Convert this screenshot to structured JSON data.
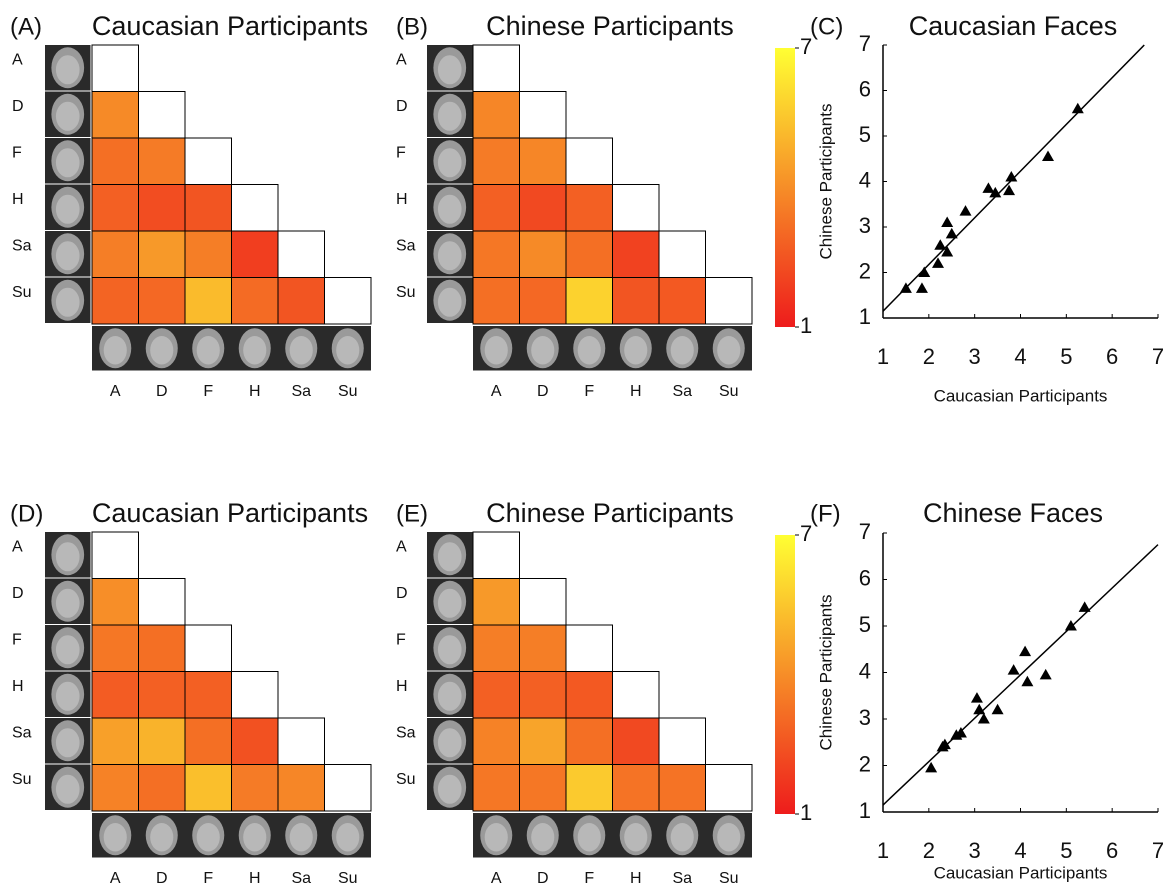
{
  "chart_data": [
    {
      "type": "heatmap",
      "panel": "(A)",
      "title": "Caucasian Participants",
      "row_labels": [
        "A",
        "D",
        "F",
        "H",
        "Sa",
        "Su"
      ],
      "col_labels": [
        "A",
        "D",
        "F",
        "H",
        "Sa",
        "Su"
      ],
      "values": [
        [],
        [
          3.9
        ],
        [
          3.2,
          3.5
        ],
        [
          2.8,
          2.3,
          2.5
        ],
        [
          3.6,
          4.3,
          3.6,
          1.9
        ],
        [
          2.9,
          3.0,
          5.2,
          3.1,
          2.5
        ]
      ],
      "clim": [
        1,
        7
      ],
      "colormap": [
        "#ee1c1c",
        "#ffff33"
      ]
    },
    {
      "type": "heatmap",
      "panel": "(B)",
      "title": "Chinese Participants",
      "row_labels": [
        "A",
        "D",
        "F",
        "H",
        "Sa",
        "Su"
      ],
      "col_labels": [
        "A",
        "D",
        "F",
        "H",
        "Sa",
        "Su"
      ],
      "values": [
        [],
        [
          3.8
        ],
        [
          3.5,
          3.8
        ],
        [
          2.8,
          2.2,
          2.8
        ],
        [
          3.4,
          3.9,
          3.2,
          2.0
        ],
        [
          3.2,
          3.0,
          5.8,
          2.5,
          2.6
        ]
      ],
      "clim": [
        1,
        7
      ],
      "colormap": [
        "#ee1c1c",
        "#ffff33"
      ],
      "colorbar_ticks": [
        1,
        7
      ]
    },
    {
      "type": "scatter",
      "panel": "(C)",
      "title": "Caucasian Faces",
      "x_label": "Caucasian Participants",
      "y_label": "Chinese Participants",
      "x": [
        1.5,
        1.85,
        1.9,
        2.2,
        2.25,
        2.4,
        2.4,
        2.5,
        2.8,
        3.3,
        3.45,
        3.75,
        3.8,
        4.6,
        5.25
      ],
      "y": [
        1.65,
        1.65,
        2.0,
        2.2,
        2.6,
        2.45,
        3.1,
        2.85,
        3.35,
        3.85,
        3.75,
        3.8,
        4.1,
        4.55,
        5.6
      ],
      "xlim": [
        1,
        7
      ],
      "ylim": [
        1,
        7
      ],
      "xticks": [
        1,
        2,
        3,
        4,
        5,
        6,
        7
      ],
      "yticks": [
        1,
        2,
        3,
        4,
        5,
        6,
        7
      ],
      "marker_color": "#000000",
      "fit_line": {
        "x": [
          1,
          6.7
        ],
        "y": [
          1.15,
          7
        ]
      }
    },
    {
      "type": "heatmap",
      "panel": "(D)",
      "title": "Caucasian Participants",
      "row_labels": [
        "A",
        "D",
        "F",
        "H",
        "Sa",
        "Su"
      ],
      "col_labels": [
        "A",
        "D",
        "F",
        "H",
        "Sa",
        "Su"
      ],
      "values": [
        [],
        [
          4.0
        ],
        [
          3.4,
          3.2
        ],
        [
          2.7,
          2.8,
          2.8
        ],
        [
          4.5,
          5.0,
          3.2,
          2.4
        ],
        [
          3.7,
          3.2,
          5.3,
          3.5,
          3.8
        ]
      ],
      "clim": [
        1,
        7
      ],
      "colormap": [
        "#ee1c1c",
        "#ffff33"
      ]
    },
    {
      "type": "heatmap",
      "panel": "(E)",
      "title": "Chinese Participants",
      "row_labels": [
        "A",
        "D",
        "F",
        "H",
        "Sa",
        "Su"
      ],
      "col_labels": [
        "A",
        "D",
        "F",
        "H",
        "Sa",
        "Su"
      ],
      "values": [
        [],
        [
          4.3
        ],
        [
          3.6,
          3.6
        ],
        [
          2.8,
          2.8,
          2.6
        ],
        [
          3.7,
          4.6,
          3.2,
          2.2
        ],
        [
          3.4,
          3.4,
          5.6,
          3.3,
          3.3
        ]
      ],
      "clim": [
        1,
        7
      ],
      "colormap": [
        "#ee1c1c",
        "#ffff33"
      ],
      "colorbar_ticks": [
        1,
        7
      ]
    },
    {
      "type": "scatter",
      "panel": "(F)",
      "title": "Chinese Faces",
      "x_label": "Caucasian Participants",
      "y_label": "Chinese Participants",
      "x": [
        2.05,
        2.3,
        2.35,
        2.6,
        2.7,
        3.05,
        3.1,
        3.2,
        3.5,
        3.85,
        4.1,
        4.15,
        4.55,
        5.1,
        5.4
      ],
      "y": [
        1.95,
        2.4,
        2.45,
        2.65,
        2.7,
        3.45,
        3.2,
        3.0,
        3.2,
        4.05,
        4.45,
        3.8,
        3.95,
        5.0,
        5.4
      ],
      "xlim": [
        1,
        7
      ],
      "ylim": [
        1,
        7
      ],
      "xticks": [
        1,
        2,
        3,
        4,
        5,
        6,
        7
      ],
      "yticks": [
        1,
        2,
        3,
        4,
        5,
        6,
        7
      ],
      "marker_color": "#000000",
      "fit_line": {
        "x": [
          1,
          7
        ],
        "y": [
          1.15,
          6.75
        ]
      }
    }
  ]
}
